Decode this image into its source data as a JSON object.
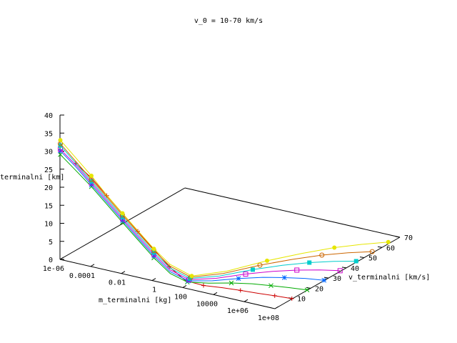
{
  "chart_data": {
    "type": "line-3d",
    "title": "v_0 = 10-70 km/s",
    "xlabel": "m_terminalni [kg]",
    "ylabel": "v_terminalni [km/s]",
    "zlabel": "h_terminalni [km]",
    "x_scale": "log",
    "x_ticks": [
      "1e-06",
      "0.0001",
      "0.01",
      "1",
      "100",
      "10000",
      "1e+06",
      "1e+08"
    ],
    "y_ticks": [
      "10",
      "20",
      "30",
      "40",
      "50",
      "60",
      "70"
    ],
    "z_ticks": [
      "0",
      "5",
      "10",
      "15",
      "20",
      "25",
      "30",
      "35",
      "40"
    ],
    "xlim": [
      1e-06,
      100000000.0
    ],
    "ylim": [
      0,
      70
    ],
    "zlim": [
      0,
      40
    ],
    "legend": "none",
    "series": [
      {
        "v0_km_s": 10,
        "color": "#cc0000",
        "marker": "plus",
        "points": [
          {
            "m": 1e-05,
            "v": 0.2,
            "h": 27.5
          },
          {
            "m": 0.0001,
            "v": 0.3,
            "h": 24.5
          },
          {
            "m": 0.001,
            "v": 0.4,
            "h": 20.5
          },
          {
            "m": 0.01,
            "v": 0.5,
            "h": 16.5
          },
          {
            "m": 0.1,
            "v": 0.6,
            "h": 12.5
          },
          {
            "m": 1,
            "v": 0.8,
            "h": 8.5
          },
          {
            "m": 10,
            "v": 1.0,
            "h": 4.5
          },
          {
            "m": 100,
            "v": 1.5,
            "h": 1.5
          },
          {
            "m": 1000,
            "v": 3.0,
            "h": 0.7
          },
          {
            "m": 10000,
            "v": 5.0,
            "h": 0.5
          },
          {
            "m": 100000,
            "v": 6.5,
            "h": 0.3
          },
          {
            "m": 1000000,
            "v": 7.5,
            "h": 0.2
          },
          {
            "m": 10000000,
            "v": 8.5,
            "h": 0.2
          },
          {
            "m": 100000000,
            "v": 9.5,
            "h": 0.1
          }
        ]
      },
      {
        "v0_km_s": 20,
        "color": "#00aa00",
        "marker": "cross",
        "points": [
          {
            "m": 1e-06,
            "v": 0.2,
            "h": 29.0
          },
          {
            "m": 1e-05,
            "v": 0.3,
            "h": 25.5
          },
          {
            "m": 0.0001,
            "v": 0.4,
            "h": 22.0
          },
          {
            "m": 0.001,
            "v": 0.5,
            "h": 18.0
          },
          {
            "m": 0.01,
            "v": 0.6,
            "h": 14.0
          },
          {
            "m": 0.1,
            "v": 0.8,
            "h": 10.0
          },
          {
            "m": 1,
            "v": 1.0,
            "h": 6.0
          },
          {
            "m": 10,
            "v": 1.5,
            "h": 2.5
          },
          {
            "m": 100,
            "v": 2.5,
            "h": 0.8
          },
          {
            "m": 1000,
            "v": 6.0,
            "h": 0.5
          },
          {
            "m": 10000,
            "v": 10.0,
            "h": 0.4
          },
          {
            "m": 100000,
            "v": 13.0,
            "h": 0.3
          },
          {
            "m": 1000000,
            "v": 15.0,
            "h": 0.2
          },
          {
            "m": 10000000,
            "v": 16.5,
            "h": 0.2
          },
          {
            "m": 100000000,
            "v": 18.0,
            "h": 0.1
          }
        ]
      },
      {
        "v0_km_s": 30,
        "color": "#0066ff",
        "marker": "star",
        "points": [
          {
            "m": 1e-06,
            "v": 0.2,
            "h": 30.0
          },
          {
            "m": 1e-05,
            "v": 0.3,
            "h": 26.5
          },
          {
            "m": 0.0001,
            "v": 0.4,
            "h": 22.5
          },
          {
            "m": 0.001,
            "v": 0.5,
            "h": 18.5
          },
          {
            "m": 0.01,
            "v": 0.6,
            "h": 14.5
          },
          {
            "m": 0.1,
            "v": 0.8,
            "h": 10.5
          },
          {
            "m": 1,
            "v": 1.0,
            "h": 6.5
          },
          {
            "m": 10,
            "v": 1.5,
            "h": 3.0
          },
          {
            "m": 100,
            "v": 3.0,
            "h": 1.0
          },
          {
            "m": 1000,
            "v": 8.0,
            "h": 0.6
          },
          {
            "m": 10000,
            "v": 14.0,
            "h": 0.5
          },
          {
            "m": 100000,
            "v": 19.0,
            "h": 0.4
          },
          {
            "m": 1000000,
            "v": 22.5,
            "h": 0.3
          },
          {
            "m": 10000000,
            "v": 25.5,
            "h": 0.2
          },
          {
            "m": 100000000,
            "v": 27.5,
            "h": 0.1
          }
        ]
      },
      {
        "v0_km_s": 40,
        "color": "#cc00cc",
        "marker": "square-open",
        "points": [
          {
            "m": 1e-06,
            "v": 0.2,
            "h": 30.5
          },
          {
            "m": 1e-05,
            "v": 0.3,
            "h": 27.0
          },
          {
            "m": 0.0001,
            "v": 0.4,
            "h": 23.0
          },
          {
            "m": 0.001,
            "v": 0.5,
            "h": 19.0
          },
          {
            "m": 0.01,
            "v": 0.6,
            "h": 15.0
          },
          {
            "m": 0.1,
            "v": 0.8,
            "h": 11.0
          },
          {
            "m": 1,
            "v": 1.0,
            "h": 7.0
          },
          {
            "m": 10,
            "v": 1.5,
            "h": 3.5
          },
          {
            "m": 100,
            "v": 3.5,
            "h": 1.2
          },
          {
            "m": 1000,
            "v": 10.0,
            "h": 0.7
          },
          {
            "m": 10000,
            "v": 18.0,
            "h": 0.6
          },
          {
            "m": 100000,
            "v": 24.5,
            "h": 0.5
          },
          {
            "m": 1000000,
            "v": 29.5,
            "h": 0.4
          },
          {
            "m": 10000000,
            "v": 33.5,
            "h": 0.3
          },
          {
            "m": 100000000,
            "v": 36.5,
            "h": 0.2
          }
        ]
      },
      {
        "v0_km_s": 50,
        "color": "#00cccc",
        "marker": "square-filled",
        "points": [
          {
            "m": 1e-06,
            "v": 0.2,
            "h": 31.5
          },
          {
            "m": 1e-05,
            "v": 0.3,
            "h": 27.5
          },
          {
            "m": 0.0001,
            "v": 0.4,
            "h": 23.5
          },
          {
            "m": 0.001,
            "v": 0.5,
            "h": 19.5
          },
          {
            "m": 0.01,
            "v": 0.6,
            "h": 15.5
          },
          {
            "m": 0.1,
            "v": 0.8,
            "h": 11.5
          },
          {
            "m": 1,
            "v": 1.0,
            "h": 7.5
          },
          {
            "m": 10,
            "v": 1.5,
            "h": 4.0
          },
          {
            "m": 100,
            "v": 4.0,
            "h": 1.4
          },
          {
            "m": 1000,
            "v": 12.0,
            "h": 0.8
          },
          {
            "m": 10000,
            "v": 22.0,
            "h": 0.7
          },
          {
            "m": 100000,
            "v": 30.0,
            "h": 0.6
          },
          {
            "m": 1000000,
            "v": 36.5,
            "h": 0.5
          },
          {
            "m": 10000000,
            "v": 41.5,
            "h": 0.4
          },
          {
            "m": 100000000,
            "v": 45.5,
            "h": 0.3
          }
        ]
      },
      {
        "v0_km_s": 60,
        "color": "#cc6600",
        "marker": "circle-open",
        "points": [
          {
            "m": 1e-06,
            "v": 0.2,
            "h": 32.0
          },
          {
            "m": 1e-05,
            "v": 0.3,
            "h": 28.0
          },
          {
            "m": 0.0001,
            "v": 0.4,
            "h": 24.0
          },
          {
            "m": 0.001,
            "v": 0.5,
            "h": 20.0
          },
          {
            "m": 0.01,
            "v": 0.6,
            "h": 16.0
          },
          {
            "m": 0.1,
            "v": 0.8,
            "h": 12.0
          },
          {
            "m": 1,
            "v": 1.0,
            "h": 8.0
          },
          {
            "m": 10,
            "v": 1.5,
            "h": 4.5
          },
          {
            "m": 100,
            "v": 4.5,
            "h": 1.6
          },
          {
            "m": 1000,
            "v": 14.0,
            "h": 0.9
          },
          {
            "m": 10000,
            "v": 26.0,
            "h": 0.8
          },
          {
            "m": 100000,
            "v": 35.5,
            "h": 0.7
          },
          {
            "m": 1000000,
            "v": 43.5,
            "h": 0.6
          },
          {
            "m": 10000000,
            "v": 49.5,
            "h": 0.5
          },
          {
            "m": 100000000,
            "v": 54.5,
            "h": 0.4
          }
        ]
      },
      {
        "v0_km_s": 70,
        "color": "#e6e600",
        "marker": "circle-filled",
        "points": [
          {
            "m": 1e-06,
            "v": 0.2,
            "h": 33.0
          },
          {
            "m": 1e-05,
            "v": 0.3,
            "h": 29.0
          },
          {
            "m": 0.0001,
            "v": 0.4,
            "h": 25.0
          },
          {
            "m": 0.001,
            "v": 0.5,
            "h": 20.5
          },
          {
            "m": 0.01,
            "v": 0.6,
            "h": 16.5
          },
          {
            "m": 0.1,
            "v": 0.8,
            "h": 12.5
          },
          {
            "m": 1,
            "v": 1.0,
            "h": 8.5
          },
          {
            "m": 10,
            "v": 1.5,
            "h": 5.0
          },
          {
            "m": 100,
            "v": 5.0,
            "h": 1.8
          },
          {
            "m": 1000,
            "v": 16.0,
            "h": 1.0
          },
          {
            "m": 10000,
            "v": 30.0,
            "h": 0.9
          },
          {
            "m": 100000,
            "v": 41.0,
            "h": 0.8
          },
          {
            "m": 1000000,
            "v": 50.5,
            "h": 0.7
          },
          {
            "m": 10000000,
            "v": 57.5,
            "h": 0.6
          },
          {
            "m": 100000000,
            "v": 63.5,
            "h": 0.5
          }
        ]
      }
    ]
  }
}
